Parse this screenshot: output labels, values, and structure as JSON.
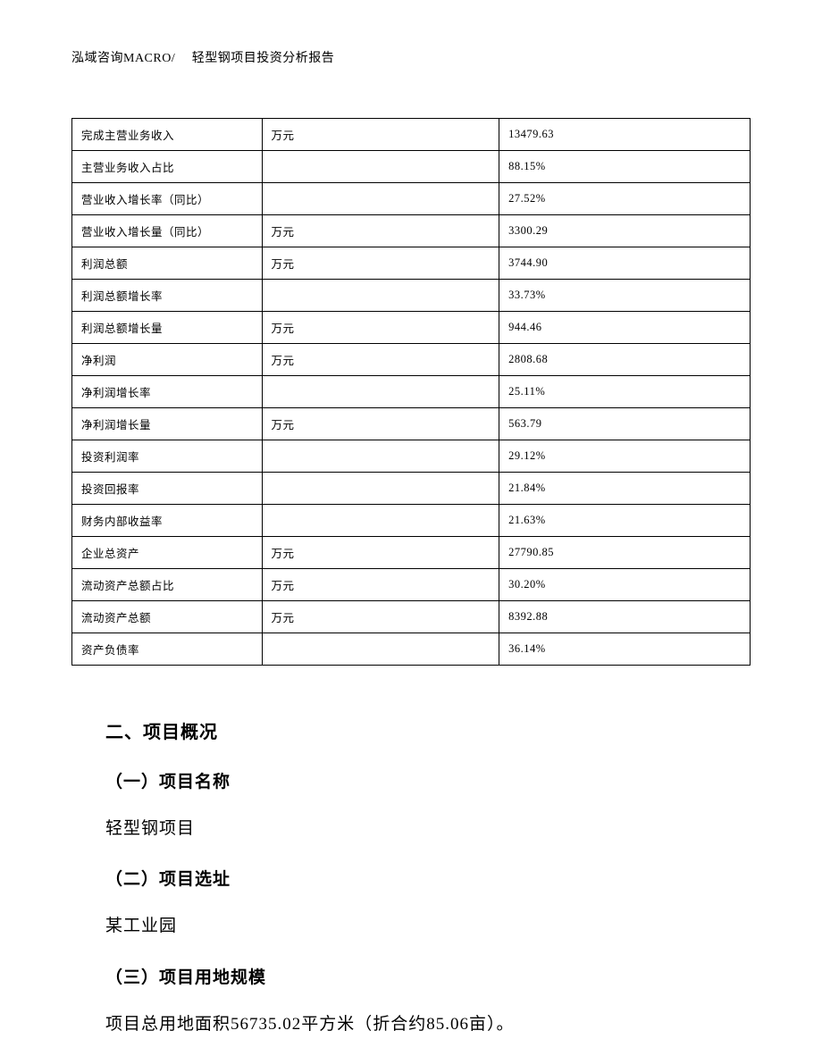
{
  "header": {
    "text": "泓域咨询MACRO/　 轻型钢项目投资分析报告"
  },
  "table": {
    "rows": [
      {
        "label": "完成主营业务收入",
        "unit": "万元",
        "value": "13479.63"
      },
      {
        "label": "主营业务收入占比",
        "unit": "",
        "value": "88.15%"
      },
      {
        "label": "营业收入增长率（同比）",
        "unit": "",
        "value": "27.52%"
      },
      {
        "label": "营业收入增长量（同比）",
        "unit": "万元",
        "value": "3300.29"
      },
      {
        "label": "利润总额",
        "unit": "万元",
        "value": "3744.90"
      },
      {
        "label": "利润总额增长率",
        "unit": "",
        "value": "33.73%"
      },
      {
        "label": "利润总额增长量",
        "unit": "万元",
        "value": "944.46"
      },
      {
        "label": "净利润",
        "unit": "万元",
        "value": "2808.68"
      },
      {
        "label": "净利润增长率",
        "unit": "",
        "value": "25.11%"
      },
      {
        "label": "净利润增长量",
        "unit": "万元",
        "value": "563.79"
      },
      {
        "label": "投资利润率",
        "unit": "",
        "value": "29.12%"
      },
      {
        "label": "投资回报率",
        "unit": "",
        "value": "21.84%"
      },
      {
        "label": "财务内部收益率",
        "unit": "",
        "value": "21.63%"
      },
      {
        "label": "企业总资产",
        "unit": "万元",
        "value": "27790.85"
      },
      {
        "label": "流动资产总额占比",
        "unit": "万元",
        "value": "30.20%"
      },
      {
        "label": "流动资产总额",
        "unit": "万元",
        "value": "8392.88"
      },
      {
        "label": "资产负债率",
        "unit": "",
        "value": "36.14%"
      }
    ]
  },
  "content": {
    "section_title": "二、项目概况",
    "subsections": [
      {
        "title": "（一）项目名称",
        "text": "轻型钢项目"
      },
      {
        "title": "（二）项目选址",
        "text": "某工业园"
      },
      {
        "title": "（三）项目用地规模",
        "text": "项目总用地面积56735.02平方米（折合约85.06亩）。"
      }
    ]
  },
  "colors": {
    "text": "#000000",
    "background": "#ffffff",
    "border": "#000000"
  }
}
